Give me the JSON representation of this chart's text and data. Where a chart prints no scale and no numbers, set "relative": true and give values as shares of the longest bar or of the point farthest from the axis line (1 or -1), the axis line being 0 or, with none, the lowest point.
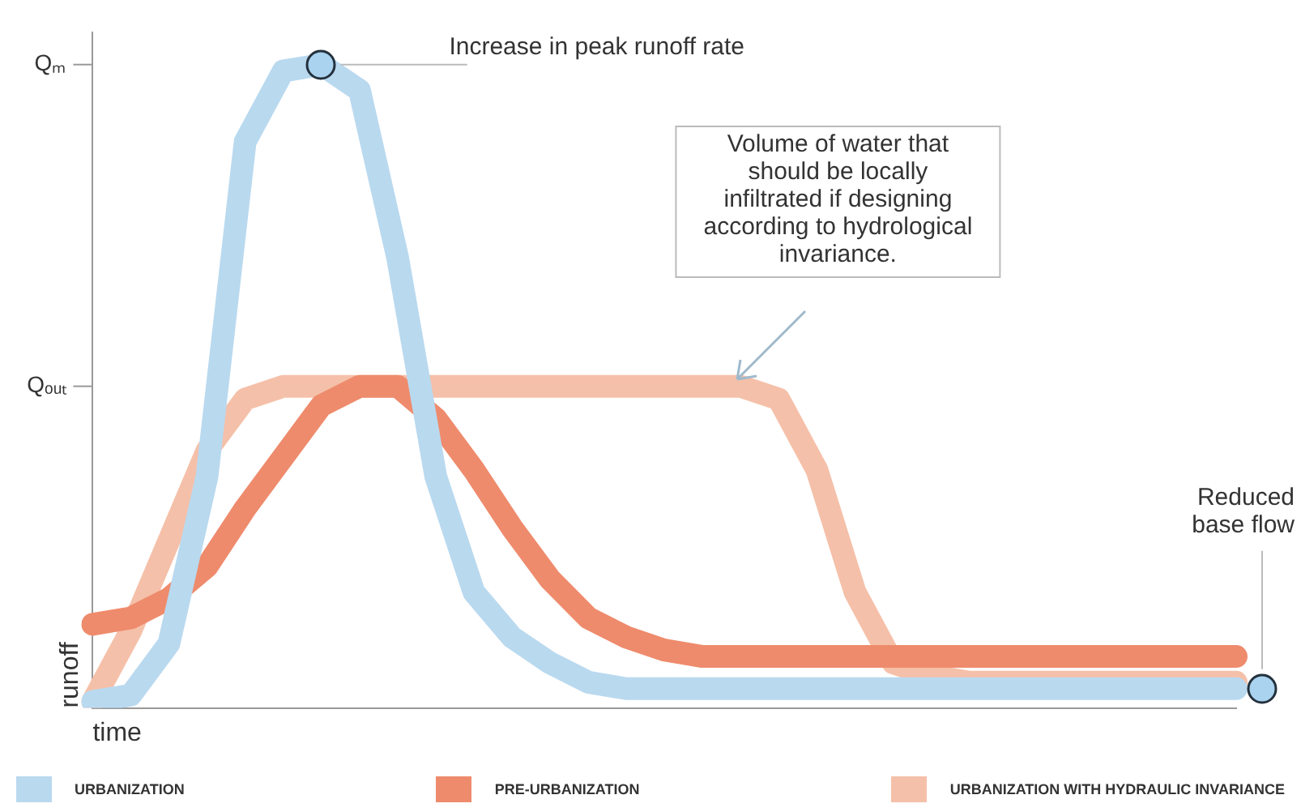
{
  "chart_data": {
    "type": "line",
    "xlabel": "time",
    "ylabel": "runoff",
    "categories": [
      null,
      null,
      null,
      null,
      null,
      null,
      null,
      null,
      null,
      null,
      null,
      null,
      null,
      null,
      null,
      null,
      null,
      null,
      null,
      null,
      null,
      null,
      null,
      null,
      null,
      null,
      null,
      null,
      null,
      null,
      null
    ],
    "series": [
      {
        "name": "URBANIZATION",
        "color": "#b9d9ef",
        "values": [
          0.01,
          0.02,
          0.1,
          0.36,
          0.88,
          0.99,
          1.0,
          0.96,
          0.7,
          0.36,
          0.18,
          0.11,
          0.07,
          0.04,
          0.03,
          0.03,
          0.03,
          0.03,
          0.03,
          0.03,
          0.03,
          0.03,
          0.03,
          0.03,
          0.03,
          0.03,
          0.03,
          0.03,
          0.03,
          0.03,
          0.03
        ]
      },
      {
        "name": "PRE-URBANIZATION",
        "color": "#ee8b6c",
        "values": [
          0.13,
          0.14,
          0.17,
          0.22,
          0.31,
          0.39,
          0.47,
          0.5,
          0.5,
          0.45,
          0.37,
          0.28,
          0.2,
          0.14,
          0.11,
          0.09,
          0.08,
          0.08,
          0.08,
          0.08,
          0.08,
          0.08,
          0.08,
          0.08,
          0.08,
          0.08,
          0.08,
          0.08,
          0.08,
          0.08,
          0.08
        ]
      },
      {
        "name": "URBANIZATION WITH HYDRAULIC INVARIANCE",
        "color": "#f5c0a9",
        "values": [
          0.01,
          0.12,
          0.26,
          0.4,
          0.48,
          0.5,
          0.5,
          0.5,
          0.5,
          0.5,
          0.5,
          0.5,
          0.5,
          0.5,
          0.5,
          0.5,
          0.5,
          0.5,
          0.48,
          0.37,
          0.18,
          0.07,
          0.05,
          0.04,
          0.04,
          0.04,
          0.04,
          0.04,
          0.04,
          0.04,
          0.04
        ]
      }
    ],
    "relative": true,
    "grid": false,
    "legend": "bottom",
    "marker": "none",
    "line_style": "solid",
    "annotations": [
      "Qₘ",
      "Qₒᵤₜ",
      "Increase in peak runoff rate",
      "Volume of water that should be locally infiltrated if designing according to hydrological invariance.",
      "Reduced base flow"
    ]
  }
}
